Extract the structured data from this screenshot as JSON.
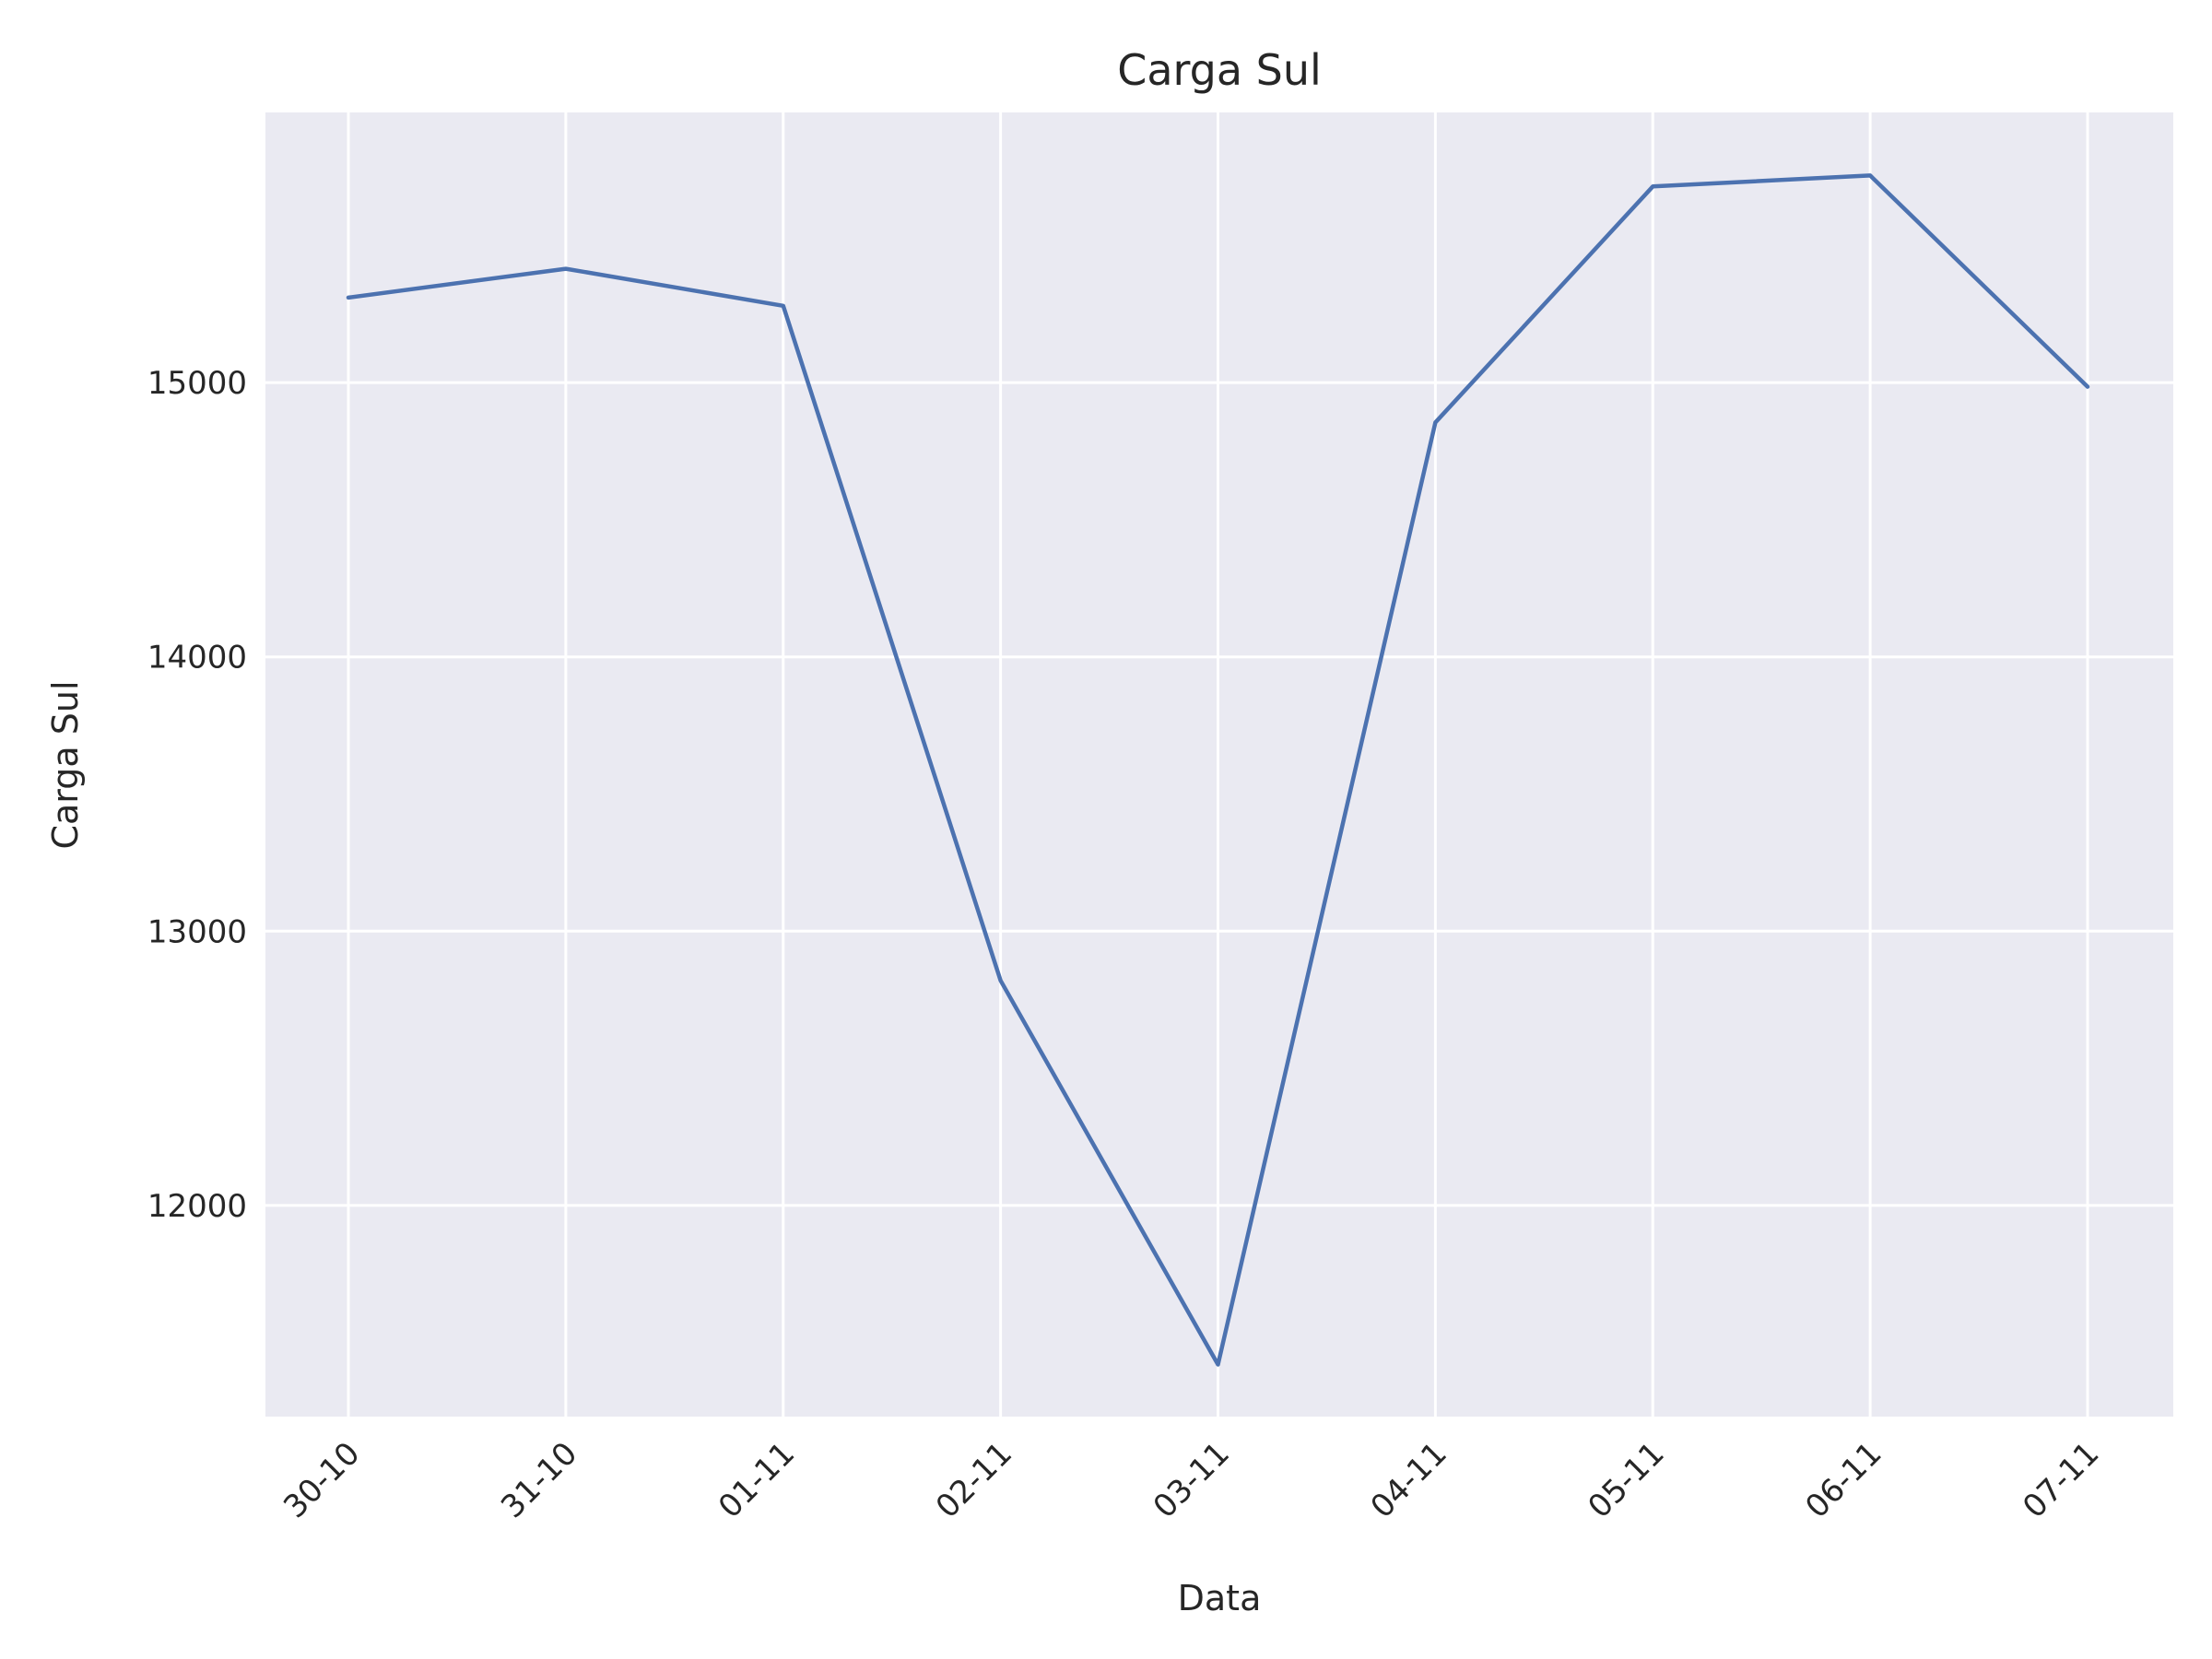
{
  "chart_data": {
    "type": "line",
    "title": "Carga Sul",
    "xlabel": "Data",
    "ylabel": "Carga Sul",
    "categories": [
      "30-10",
      "31-10",
      "01-11",
      "02-11",
      "03-11",
      "04-11",
      "05-11",
      "06-11",
      "07-11"
    ],
    "series": [
      {
        "values": [
          15310,
          15415,
          15280,
          12820,
          11420,
          14855,
          15715,
          15755,
          14985
        ]
      }
    ],
    "yticks": [
      12000,
      13000,
      14000,
      15000
    ],
    "ylim": [
      11230,
      15985
    ],
    "grid": true,
    "colors": {
      "background": "#eaeaf2",
      "grid": "#ffffff",
      "series": "#4c72b0"
    }
  }
}
